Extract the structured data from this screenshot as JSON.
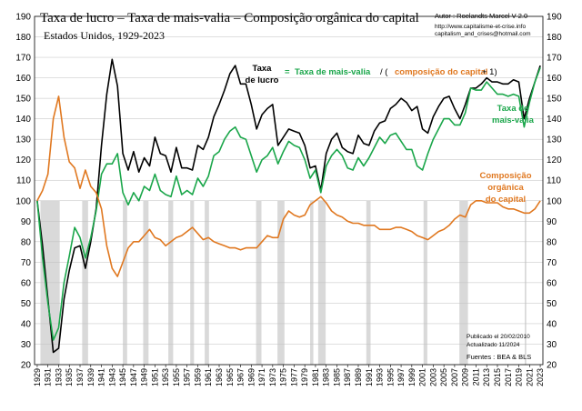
{
  "chart_data": {
    "type": "line",
    "title": "Taxa de lucro – Taxa de mais-valia – Composição orgânica do capital",
    "subtitle": "Estados Unidos, 1929-2023",
    "author": "Autor : Roelandts Marcel  V 2.0",
    "website": "http://www.capitalisme-et-crise.info",
    "email": "capitalism_and_crises@hotmail.com",
    "published": "Publicado el 20/02/2010",
    "updated": "Actualizado 11/2024",
    "sources": "Fuentes : BEA & BLS",
    "ylim": [
      20,
      190
    ],
    "yticks": [
      20,
      30,
      40,
      50,
      60,
      70,
      80,
      90,
      100,
      110,
      120,
      130,
      140,
      150,
      160,
      170,
      180,
      190
    ],
    "xticks": [
      "1929",
      "1931",
      "1933",
      "1935",
      "1937",
      "1939",
      "1941",
      "1943",
      "1945",
      "1947",
      "1949",
      "1951",
      "1953",
      "1955",
      "1957",
      "1959",
      "1961",
      "1963",
      "1965",
      "1967",
      "1969",
      "1971",
      "1973",
      "1975",
      "1977",
      "1979",
      "1981",
      "1983",
      "1985",
      "1987",
      "1989",
      "1991",
      "1993",
      "1995",
      "1997",
      "1999",
      "2001",
      "2003",
      "2005",
      "2007",
      "2009",
      "2011",
      "2013",
      "2015",
      "2017",
      "2019",
      "2021",
      "2023"
    ],
    "formula": {
      "lhs_line1": "Taxa",
      "lhs_line2": "de lucro",
      "eq": "=",
      "mais_valia": "Taxa de mais-valia",
      "slash": " / (",
      "composicao": "composição do capital",
      "plus": " + 1)"
    },
    "labels": {
      "mais_valia_line1": "Taxa de",
      "mais_valia_line2": "mais-valia",
      "composicao_line1": "Composição",
      "composicao_line2": "orgânica",
      "composicao_line3": "do capital"
    },
    "recessions": [
      [
        1929.6,
        1933.2
      ],
      [
        1937.4,
        1938.5
      ],
      [
        1945.0,
        1945.8
      ],
      [
        1948.8,
        1949.8
      ],
      [
        1953.5,
        1954.4
      ],
      [
        1957.6,
        1958.3
      ],
      [
        1960.3,
        1961.1
      ],
      [
        1969.9,
        1970.9
      ],
      [
        1973.9,
        1975.2
      ],
      [
        1980.0,
        1980.6
      ],
      [
        1981.5,
        1982.9
      ],
      [
        1990.5,
        1991.3
      ],
      [
        2001.2,
        2001.9
      ],
      [
        2007.9,
        2009.5
      ],
      [
        2020.1,
        2020.4
      ]
    ],
    "colors": {
      "taxa_lucro": "#000000",
      "mais_valia": "#1aa64a",
      "composicao": "#e07820",
      "recession": "#d9d9d9"
    },
    "series": [
      {
        "name": "Taxa de lucro",
        "color": "#000000",
        "years": [
          1929,
          1930,
          1931,
          1932,
          1933,
          1934,
          1935,
          1936,
          1937,
          1938,
          1939,
          1940,
          1941,
          1942,
          1943,
          1944,
          1945,
          1946,
          1947,
          1948,
          1949,
          1950,
          1951,
          1952,
          1953,
          1954,
          1955,
          1956,
          1957,
          1958,
          1959,
          1960,
          1961,
          1962,
          1963,
          1964,
          1965,
          1966,
          1967,
          1968,
          1969,
          1970,
          1971,
          1972,
          1973,
          1974,
          1975,
          1976,
          1977,
          1978,
          1979,
          1980,
          1981,
          1982,
          1983,
          1984,
          1985,
          1986,
          1987,
          1988,
          1989,
          1990,
          1991,
          1992,
          1993,
          1994,
          1995,
          1996,
          1997,
          1998,
          1999,
          2000,
          2001,
          2002,
          2003,
          2004,
          2005,
          2006,
          2007,
          2008,
          2009,
          2010,
          2011,
          2012,
          2013,
          2014,
          2015,
          2016,
          2017,
          2018,
          2019,
          2020,
          2021,
          2022,
          2023
        ],
        "values": [
          100,
          78,
          52,
          26,
          28,
          52,
          66,
          77,
          78,
          67,
          80,
          96,
          127,
          152,
          169,
          156,
          123,
          115,
          124,
          114,
          121,
          117,
          131,
          123,
          122,
          114,
          126,
          116,
          116,
          115,
          127,
          125,
          131,
          141,
          147,
          154,
          162,
          166,
          157,
          157,
          147,
          135,
          142,
          145,
          147,
          127,
          131,
          135,
          134,
          133,
          127,
          116,
          117,
          105,
          123,
          130,
          133,
          126,
          124,
          123,
          132,
          128,
          127,
          134,
          138,
          139,
          145,
          147,
          150,
          148,
          144,
          146,
          135,
          133,
          141,
          146,
          150,
          151,
          145,
          140,
          147,
          155,
          155,
          157,
          160,
          158,
          158,
          157,
          157,
          159,
          158,
          140,
          150,
          158,
          166
        ]
      },
      {
        "name": "Taxa de mais-valia",
        "color": "#1aa64a",
        "years": [
          1929,
          1930,
          1931,
          1932,
          1933,
          1934,
          1935,
          1936,
          1937,
          1938,
          1939,
          1940,
          1941,
          1942,
          1943,
          1944,
          1945,
          1946,
          1947,
          1948,
          1949,
          1950,
          1951,
          1952,
          1953,
          1954,
          1955,
          1956,
          1957,
          1958,
          1959,
          1960,
          1961,
          1962,
          1963,
          1964,
          1965,
          1966,
          1967,
          1968,
          1969,
          1970,
          1971,
          1972,
          1973,
          1974,
          1975,
          1976,
          1977,
          1978,
          1979,
          1980,
          1981,
          1982,
          1983,
          1984,
          1985,
          1986,
          1987,
          1988,
          1989,
          1990,
          1991,
          1992,
          1993,
          1994,
          1995,
          1996,
          1997,
          1998,
          1999,
          2000,
          2001,
          2002,
          2003,
          2004,
          2005,
          2006,
          2007,
          2008,
          2009,
          2010,
          2011,
          2012,
          2013,
          2014,
          2015,
          2016,
          2017,
          2018,
          2019,
          2020,
          2021,
          2022,
          2023
        ],
        "values": [
          100,
          72,
          50,
          32,
          38,
          60,
          73,
          87,
          82,
          72,
          82,
          95,
          113,
          118,
          118,
          123,
          104,
          98,
          104,
          100,
          107,
          105,
          113,
          105,
          103,
          102,
          112,
          103,
          105,
          103,
          111,
          107,
          112,
          122,
          124,
          130,
          134,
          136,
          131,
          130,
          122,
          114,
          120,
          122,
          126,
          118,
          124,
          129,
          127,
          126,
          120,
          111,
          115,
          104,
          117,
          122,
          125,
          122,
          116,
          115,
          121,
          117,
          121,
          126,
          131,
          128,
          132,
          133,
          129,
          125,
          125,
          117,
          115,
          123,
          130,
          135,
          140,
          140,
          137,
          137,
          143,
          155,
          154,
          154,
          158,
          155,
          152,
          152,
          151,
          152,
          151,
          136,
          148,
          158,
          165
        ]
      },
      {
        "name": "Composição orgânica do capital",
        "color": "#e07820",
        "years": [
          1929,
          1930,
          1931,
          1932,
          1933,
          1934,
          1935,
          1936,
          1937,
          1938,
          1939,
          1940,
          1941,
          1942,
          1943,
          1944,
          1945,
          1946,
          1947,
          1948,
          1949,
          1950,
          1951,
          1952,
          1953,
          1954,
          1955,
          1956,
          1957,
          1958,
          1959,
          1960,
          1961,
          1962,
          1963,
          1964,
          1965,
          1966,
          1967,
          1968,
          1969,
          1970,
          1971,
          1972,
          1973,
          1974,
          1975,
          1976,
          1977,
          1978,
          1979,
          1980,
          1981,
          1982,
          1983,
          1984,
          1985,
          1986,
          1987,
          1988,
          1989,
          1990,
          1991,
          1992,
          1993,
          1994,
          1995,
          1996,
          1997,
          1998,
          1999,
          2000,
          2001,
          2002,
          2003,
          2004,
          2005,
          2006,
          2007,
          2008,
          2009,
          2010,
          2011,
          2012,
          2013,
          2014,
          2015,
          2016,
          2017,
          2018,
          2019,
          2020,
          2021,
          2022,
          2023
        ],
        "values": [
          100,
          105,
          113,
          140,
          151,
          131,
          119,
          116,
          106,
          115,
          107,
          104,
          96,
          78,
          67,
          63,
          70,
          77,
          80,
          80,
          83,
          86,
          82,
          81,
          78,
          80,
          82,
          83,
          85,
          87,
          84,
          81,
          82,
          80,
          79,
          78,
          77,
          77,
          76,
          77,
          77,
          77,
          80,
          83,
          82,
          82,
          91,
          95,
          93,
          92,
          93,
          98,
          100,
          102,
          99,
          95,
          93,
          92,
          90,
          89,
          89,
          88,
          88,
          88,
          86,
          86,
          86,
          87,
          87,
          86,
          85,
          83,
          82,
          81,
          83,
          85,
          86,
          88,
          91,
          93,
          92,
          98,
          100,
          100,
          99,
          99,
          99,
          97,
          96,
          96,
          95,
          94,
          94,
          96,
          100
        ]
      }
    ]
  }
}
